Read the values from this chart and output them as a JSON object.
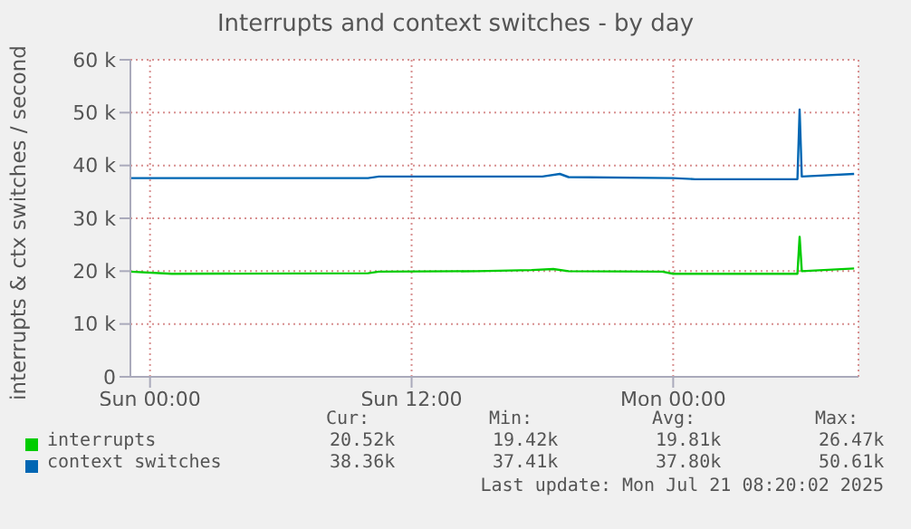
{
  "chart_data": {
    "type": "line",
    "title": "Interrupts and context switches - by day",
    "ylabel": "interrupts & ctx switches / second",
    "xlim": [
      "2025-07-19T23:06",
      "2025-07-21T08:30"
    ],
    "xticks": [
      {
        "value": "2025-07-20T00:00",
        "label": "Sun 00:00"
      },
      {
        "value": "2025-07-20T12:00",
        "label": "Sun 12:00"
      },
      {
        "value": "2025-07-21T00:00",
        "label": "Mon 00:00"
      }
    ],
    "ylim": [
      0,
      60000
    ],
    "yticks": [
      {
        "value": 0,
        "label": "0"
      },
      {
        "value": 10000,
        "label": "10 k"
      },
      {
        "value": 20000,
        "label": "20 k"
      },
      {
        "value": 30000,
        "label": "30 k"
      },
      {
        "value": 40000,
        "label": "40 k"
      },
      {
        "value": 50000,
        "label": "50 k"
      },
      {
        "value": 60000,
        "label": "60 k"
      }
    ],
    "grid": true,
    "legend": "bottom",
    "marker": "none",
    "line_style": "solid",
    "series": [
      {
        "name": "interrupts",
        "color": "#00cc00",
        "x": [
          "2025-07-19T23:06",
          "2025-07-20T01:00",
          "2025-07-20T10:00",
          "2025-07-20T10:30",
          "2025-07-20T15:00",
          "2025-07-20T17:30",
          "2025-07-20T18:30",
          "2025-07-20T19:12",
          "2025-07-20T23:30",
          "2025-07-21T00:00",
          "2025-07-21T05:42",
          "2025-07-21T05:48",
          "2025-07-21T05:54",
          "2025-07-21T08:18"
        ],
        "values": [
          19900,
          19500,
          19600,
          19900,
          20000,
          20200,
          20400,
          20000,
          19900,
          19500,
          19500,
          26500,
          20000,
          20500
        ]
      },
      {
        "name": "context switches",
        "color": "#0066b3",
        "x": [
          "2025-07-19T23:06",
          "2025-07-20T10:00",
          "2025-07-20T10:30",
          "2025-07-20T18:00",
          "2025-07-20T18:48",
          "2025-07-20T19:12",
          "2025-07-21T00:00",
          "2025-07-21T01:00",
          "2025-07-21T05:42",
          "2025-07-21T05:48",
          "2025-07-21T05:54",
          "2025-07-21T08:18"
        ],
        "values": [
          37600,
          37600,
          37900,
          37900,
          38400,
          37800,
          37600,
          37400,
          37400,
          50600,
          37900,
          38400
        ]
      }
    ],
    "annotations": [
      "Cur:",
      "Min:",
      "Avg:",
      "Max:",
      "20.52k",
      "19.42k",
      "19.81k",
      "26.47k",
      "38.36k",
      "37.41k",
      "37.80k",
      "50.61k",
      "Last update: Mon Jul 21 08:20:02 2025"
    ]
  }
}
